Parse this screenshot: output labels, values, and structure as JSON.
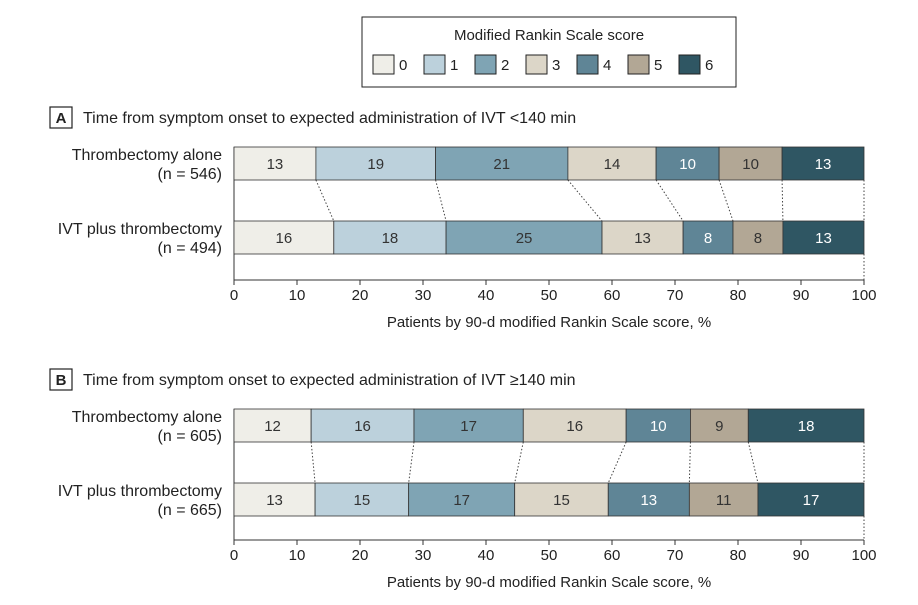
{
  "legend": {
    "title": "Modified Rankin Scale score",
    "scores": [
      "0",
      "1",
      "2",
      "3",
      "4",
      "5",
      "6"
    ]
  },
  "colors": {
    "segments": [
      "#efeee8",
      "#bcd1dc",
      "#7fa4b4",
      "#dcd6c8",
      "#5f8596",
      "#b2a795",
      "#2f5663"
    ],
    "segment_text": [
      "#333333",
      "#333333",
      "#333333",
      "#333333",
      "#ffffff",
      "#333333",
      "#ffffff"
    ]
  },
  "chart_data": [
    {
      "type": "bar",
      "orientation": "horizontal",
      "stacked": true,
      "panel_letter": "A",
      "title": "Time from symptom onset to expected administration of IVT <140 min",
      "xlabel": "Patients by 90-d modified Rankin Scale score, %",
      "xlim": [
        0,
        100
      ],
      "xticks": [
        0,
        10,
        20,
        30,
        40,
        50,
        60,
        70,
        80,
        90,
        100
      ],
      "series_names": [
        "0",
        "1",
        "2",
        "3",
        "4",
        "5",
        "6"
      ],
      "rows": [
        {
          "label": "Thrombectomy alone",
          "n": "(n = 546)",
          "values": [
            13,
            19,
            21,
            14,
            10,
            10,
            13
          ]
        },
        {
          "label": "IVT plus thrombectomy",
          "n": "(n = 494)",
          "values": [
            16,
            18,
            25,
            13,
            8,
            8,
            13
          ]
        }
      ]
    },
    {
      "type": "bar",
      "orientation": "horizontal",
      "stacked": true,
      "panel_letter": "B",
      "title": "Time from symptom onset to expected administration of IVT ≥140 min",
      "xlabel": "Patients by 90-d modified Rankin Scale score, %",
      "xlim": [
        0,
        100
      ],
      "xticks": [
        0,
        10,
        20,
        30,
        40,
        50,
        60,
        70,
        80,
        90,
        100
      ],
      "series_names": [
        "0",
        "1",
        "2",
        "3",
        "4",
        "5",
        "6"
      ],
      "rows": [
        {
          "label": "Thrombectomy alone",
          "n": "(n = 605)",
          "values": [
            12,
            16,
            17,
            16,
            10,
            9,
            18
          ]
        },
        {
          "label": "IVT plus thrombectomy",
          "n": "(n = 665)",
          "values": [
            13,
            15,
            17,
            15,
            13,
            11,
            17
          ]
        }
      ]
    }
  ]
}
